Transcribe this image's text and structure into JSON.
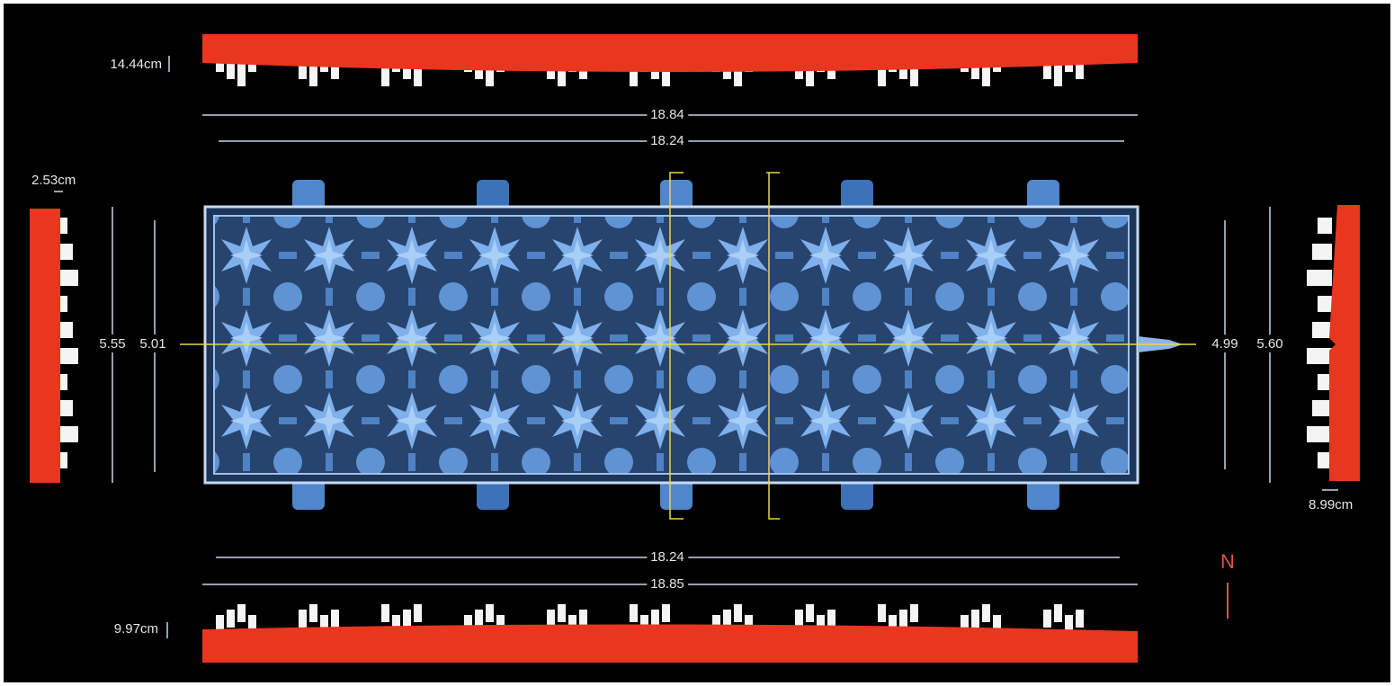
{
  "top_profile": {
    "height_label": "14.44cm"
  },
  "left_profile": {
    "width_label": "2.53cm"
  },
  "right_profile": {
    "width_label": "8.99cm"
  },
  "bottom_profile": {
    "height_label": "9.97cm"
  },
  "dimensions": {
    "top_outer": "18.84",
    "top_inner": "18.24",
    "bottom_inner": "18.24",
    "bottom_outer": "18.85",
    "left_outer": "5.55",
    "left_inner": "5.01",
    "right_inner": "4.99",
    "right_outer": "5.60"
  },
  "compass": "N"
}
